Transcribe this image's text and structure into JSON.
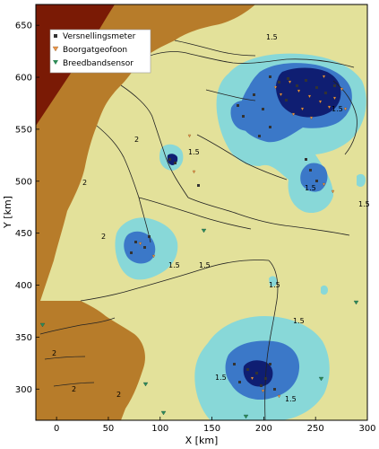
{
  "axes": {
    "xlabel": "X [km]",
    "ylabel": "Y [km]",
    "xlim": [
      -20,
      300
    ],
    "ylim": [
      270,
      670
    ],
    "xticks": [
      0,
      50,
      100,
      150,
      200,
      250,
      300
    ],
    "yticks": [
      300,
      350,
      400,
      450,
      500,
      550,
      600,
      650
    ]
  },
  "legend": {
    "placement": "top-left",
    "items": [
      {
        "label": "Versnellingsmeter",
        "marker": "square",
        "color": "#333333"
      },
      {
        "label": "Boorgatgeofoon",
        "marker": "triangle-down",
        "color": "#e8954a"
      },
      {
        "label": "Breedbandsensor",
        "marker": "triangle-down",
        "color": "#2e8b57"
      }
    ]
  },
  "contour_labels": [
    "1.5",
    "2",
    "1.5",
    "2",
    "1.5",
    "1.5",
    "1.5",
    "2",
    "1.5",
    "1.5",
    "1.5",
    "1.5",
    "2",
    "1.5",
    "2",
    "1.5",
    "2"
  ],
  "colors": {
    "level_3": "#7a1a05",
    "level_2": "#b77c2a",
    "level_1_5": "#e3e19a",
    "level_1": "#88d8d8",
    "level_0_5": "#3b78c8",
    "level_0": "#0f1e72",
    "boundary": "#222222",
    "accelerometer": "#333333",
    "geophone": "#e8954a",
    "broadband": "#2e8b57"
  }
}
